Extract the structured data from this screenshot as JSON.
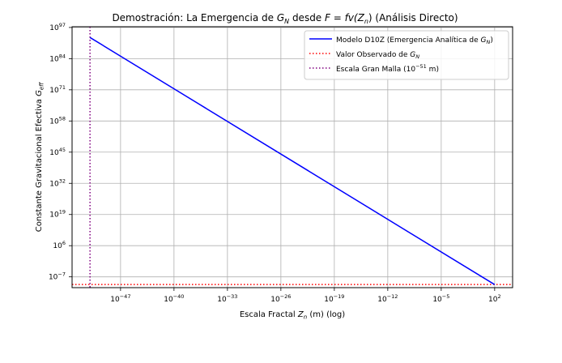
{
  "chart_data": {
    "type": "line",
    "title": {
      "part1": "Demostración: La Emergencia de ",
      "g": "G",
      "g_sub": "N",
      "part2": " desde ",
      "f_expr": "F = fv(Z",
      "f_sub": "n",
      "part3": ") (Análisis Directo)"
    },
    "xlabel": {
      "main": "Escala Fractal ",
      "z": "Z",
      "z_sub": "n",
      "suffix": " (m) (log)"
    },
    "ylabel": {
      "main": "Constante Gravitacional Efectiva ",
      "g": "G",
      "g_sub": "eff"
    },
    "x_scale": "log",
    "y_scale": "log",
    "xlim_log10": [
      -53.35,
      4.35
    ],
    "ylim_log10": [
      -11.5,
      97.3
    ],
    "x_ticks": [
      {
        "exp": "−47",
        "log10": -47
      },
      {
        "exp": "−40",
        "log10": -40
      },
      {
        "exp": "−33",
        "log10": -33
      },
      {
        "exp": "−26",
        "log10": -26
      },
      {
        "exp": "−19",
        "log10": -19
      },
      {
        "exp": "−12",
        "log10": -12
      },
      {
        "exp": "−5",
        "log10": -5
      },
      {
        "exp": "2",
        "log10": 2
      }
    ],
    "y_ticks": [
      {
        "exp": "−7",
        "log10": -7
      },
      {
        "exp": "6",
        "log10": 6
      },
      {
        "exp": "19",
        "log10": 19
      },
      {
        "exp": "32",
        "log10": 32
      },
      {
        "exp": "45",
        "log10": 45
      },
      {
        "exp": "58",
        "log10": 58
      },
      {
        "exp": "71",
        "log10": 71
      },
      {
        "exp": "84",
        "log10": 84
      },
      {
        "exp": "97",
        "log10": 97
      }
    ],
    "grid": true,
    "legend_position": "top-right",
    "series": [
      {
        "name": "Modelo D10Z (Emergencia Analítica de ",
        "name_g": "G",
        "name_sub": "N",
        "name_end": ")",
        "style": "solid",
        "color": "#0000ff",
        "x_log10": [
          -51,
          2
        ],
        "y_log10": [
          92.8,
          -10.2
        ]
      },
      {
        "name": "Valor Observado de ",
        "name_g": "G",
        "name_sub": "N",
        "name_end": "",
        "style": "dotted-horizontal",
        "color": "#ff0000",
        "y_log10": -10.18
      },
      {
        "name": "Escala Gran Malla (10",
        "name_sup": "−51",
        "name_end": " m)",
        "style": "dotted-vertical",
        "color": "#800080",
        "x_log10": -51
      }
    ]
  }
}
